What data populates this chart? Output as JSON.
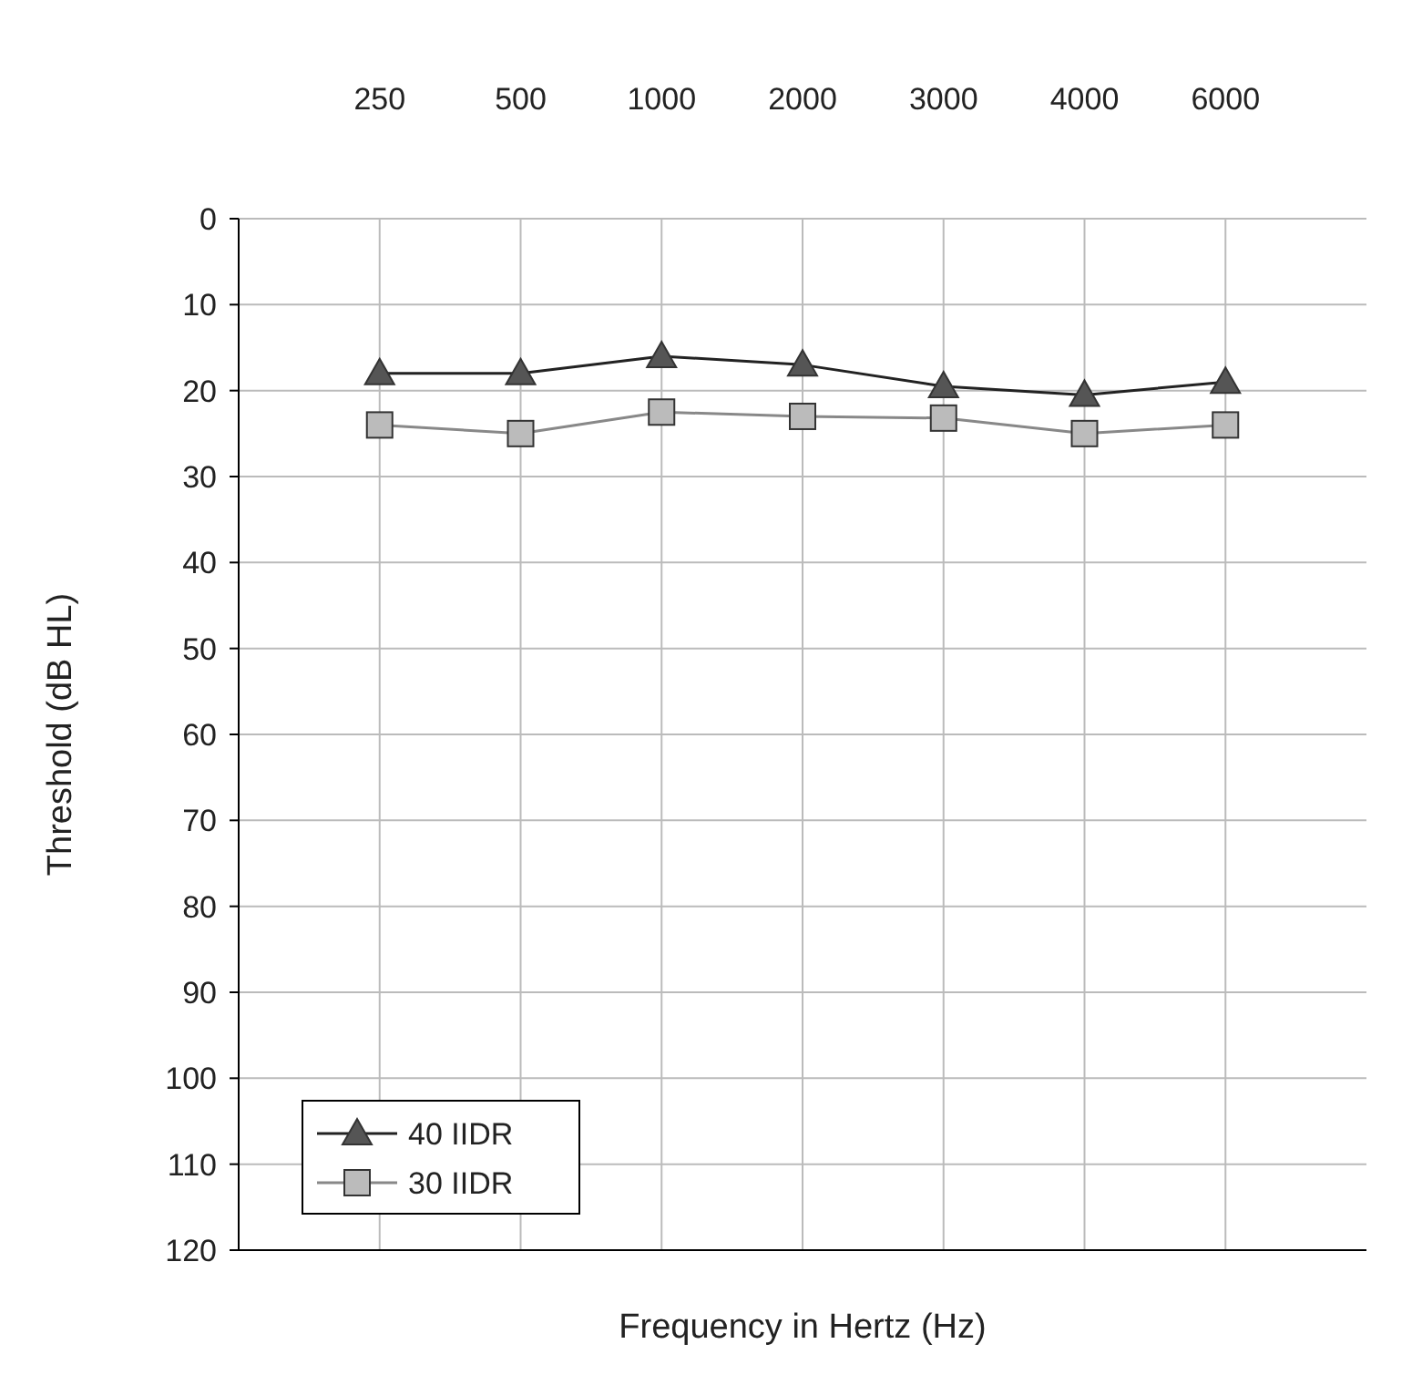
{
  "chart_data": {
    "type": "line",
    "xlabel": "Frequency in Hertz (Hz)",
    "ylabel": "Threshold (dB HL)",
    "categories": [
      "250",
      "500",
      "1000",
      "2000",
      "3000",
      "4000",
      "6000"
    ],
    "series": [
      {
        "name": "40 IIDR",
        "color": "#555555",
        "marker": "triangle",
        "values": [
          18,
          18,
          16,
          17,
          19.5,
          20.5,
          19
        ]
      },
      {
        "name": "30 IIDR",
        "color": "#888888",
        "marker": "square",
        "values": [
          24,
          25,
          22.5,
          23,
          23.2,
          25,
          24
        ]
      }
    ],
    "ylim": [
      120,
      0
    ],
    "yticks": [
      0,
      10,
      20,
      30,
      40,
      50,
      60,
      70,
      80,
      90,
      100,
      110,
      120
    ],
    "grid": true,
    "legend": "bottom left"
  }
}
